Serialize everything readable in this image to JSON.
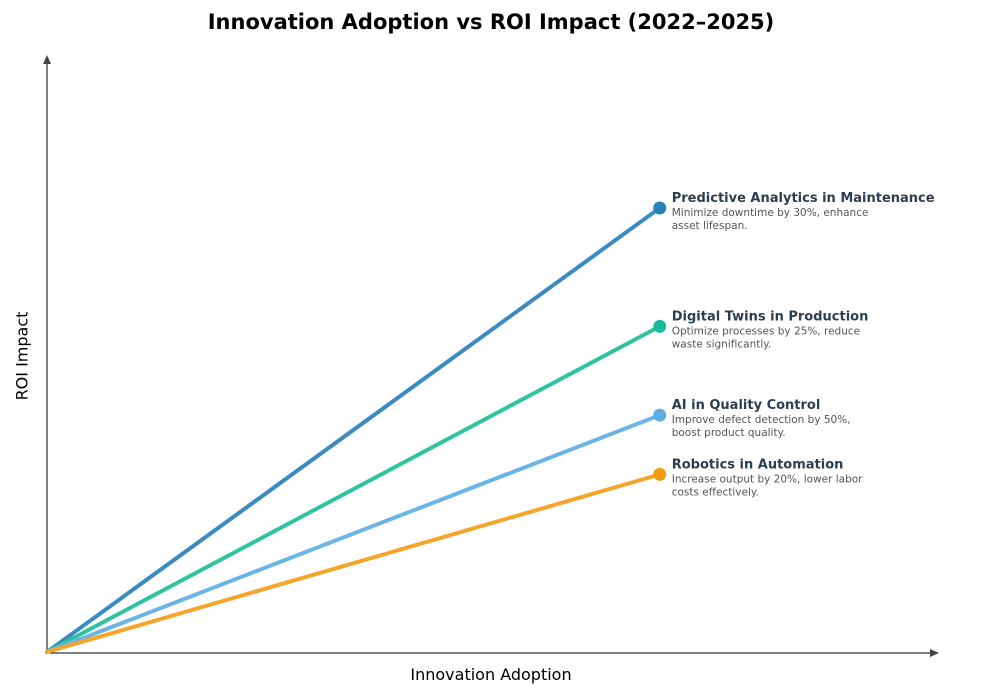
{
  "chart_data": {
    "type": "line",
    "title": "Innovation Adoption vs ROI Impact (2022–2025)",
    "xlabel": "Innovation Adoption",
    "ylabel": "ROI Impact",
    "xlim": [
      0,
      10
    ],
    "ylim": [
      0,
      10
    ],
    "grid": false,
    "legend": "none",
    "series": [
      {
        "name": "Predictive Analytics in Maintenance",
        "description_lines": [
          "Minimize downtime by 30%, enhance",
          "asset lifespan."
        ],
        "x": [
          0,
          6.9
        ],
        "y": [
          0,
          7.5
        ],
        "line_color": "#3b8bc2",
        "dot_color": "#2980b9"
      },
      {
        "name": "Digital Twins in Production",
        "description_lines": [
          "Optimize processes by 25%, reduce",
          "waste significantly."
        ],
        "x": [
          0,
          6.9
        ],
        "y": [
          0,
          5.5
        ],
        "line_color": "#2ec4a0",
        "dot_color": "#1abc9c"
      },
      {
        "name": "AI in Quality Control",
        "description_lines": [
          "Improve defect detection by 50%,",
          "boost product quality."
        ],
        "x": [
          0,
          6.9
        ],
        "y": [
          0,
          4.0
        ],
        "line_color": "#6bb5e4",
        "dot_color": "#5dade2"
      },
      {
        "name": "Robotics in Automation",
        "description_lines": [
          "Increase output by 20%, lower labor",
          "costs effectively."
        ],
        "x": [
          0,
          6.9
        ],
        "y": [
          0,
          3.0
        ],
        "line_color": "#f5a52a",
        "dot_color": "#f39c12"
      }
    ]
  }
}
